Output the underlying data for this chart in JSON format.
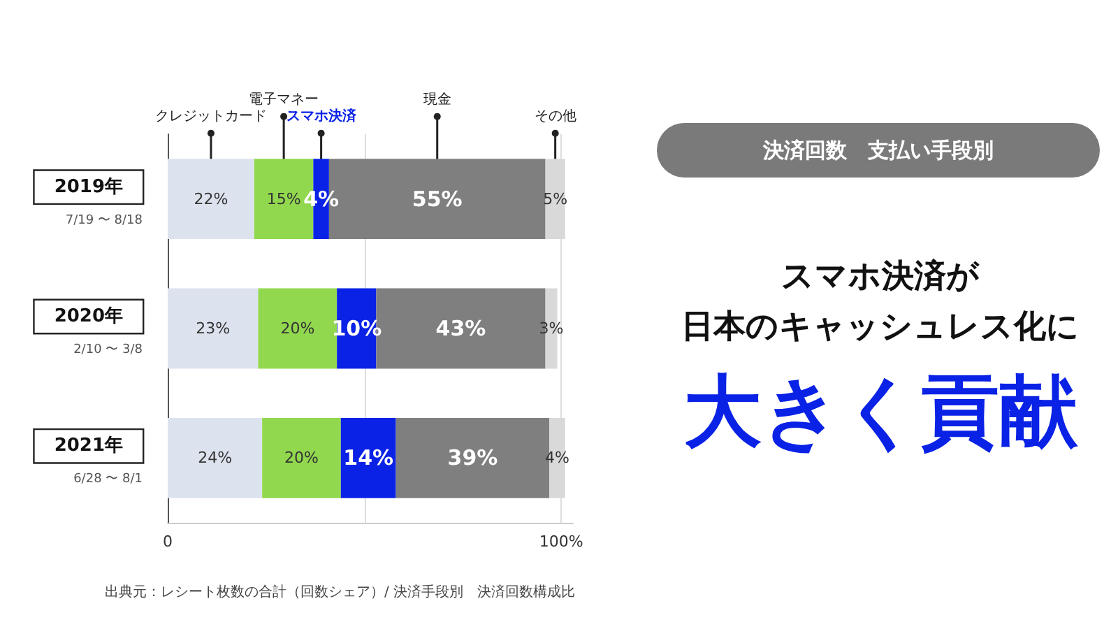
{
  "chart_data": {
    "type": "bar",
    "orientation": "horizontal",
    "stacked": true,
    "title": "決済回数　支払い手段別",
    "subtitle": "スマホ決済が",
    "categories": [
      "2019年\n7/19 〜 8/18",
      "2020年\n2/10 〜 3/8",
      "2021年\n6/28 〜 8/1"
    ],
    "series": [
      {
        "name": "クレジットカード",
        "color": "#dde3ee",
        "values": [
          22,
          23,
          24
        ],
        "value_labels": [
          "22%",
          "23%",
          "24%"
        ]
      },
      {
        "name": "電子マネー",
        "color": "#92d84f",
        "values": [
          15,
          20,
          20
        ],
        "value_labels": [
          "15%",
          "20%",
          "20%"
        ]
      },
      {
        "name": "スマホ決済",
        "color": "#0a22e6",
        "values": [
          4,
          10,
          14
        ],
        "value_labels": [
          "4%",
          "10%",
          "14%"
        ]
      },
      {
        "name": "現金",
        "color": "#7f7f7f",
        "values": [
          55,
          43,
          39
        ],
        "value_labels": [
          "55%",
          "43%",
          "39%"
        ]
      },
      {
        "name": "その他",
        "color": "#d9d9d9",
        "values": [
          5,
          3,
          4
        ],
        "value_labels": [
          "5%",
          "3%",
          "4%"
        ]
      }
    ],
    "xlim": [
      0,
      103
    ],
    "xticks": [
      0,
      {
        "value": 50,
        "label": null
      },
      {
        "value": 100,
        "label": "100%"
      }
    ],
    "grid": "x",
    "annotations": [
      "日本のキャッシュレス化に",
      "大きく貢献",
      "出典元：レシート枚数の合計（回数シェア）/ 決済手段別　決済回数構成比"
    ]
  }
}
